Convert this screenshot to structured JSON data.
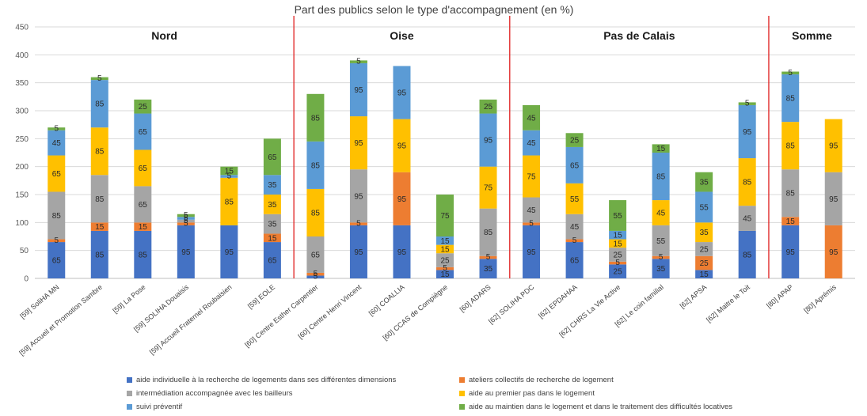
{
  "chart_data": {
    "type": "bar",
    "stacked": true,
    "title": "Part des publics selon le type d'accompagnement (en %)",
    "ylim": [
      0,
      450
    ],
    "yticks": [
      0,
      50,
      100,
      150,
      200,
      250,
      300,
      350,
      400,
      450
    ],
    "grid": true,
    "legend_position": "bottom",
    "regions": [
      {
        "name": "Nord",
        "from": 0,
        "to": 5
      },
      {
        "name": "Oise",
        "from": 6,
        "to": 10
      },
      {
        "name": "Pas de Calais",
        "from": 11,
        "to": 16
      },
      {
        "name": "Somme",
        "from": 17,
        "to": 18
      }
    ],
    "categories": [
      "[59] SoliHA MN",
      "[59] Accueil et Promotion Sambre",
      "[59] La Pose",
      "[59] SOLIHA Douaisis",
      "[59] Accueil Fraternel Roubaisien",
      "[59] EOLE",
      "[60] Centre Esther Carpentier",
      "[60] Centre Henri Vincent",
      "[60] COALLIA",
      "[60] CCAS de Compiègne",
      "[60] ADARS",
      "[62] SOLIHA PDC",
      "[62] EPDAHAA",
      "[62] CHRS La Vie Active",
      "[62] Le coin familial",
      "[62] APSA",
      "[62] Maitre le Toit",
      "[80] APAP",
      "[80] Aprémis"
    ],
    "series": [
      {
        "name": "aide individuelle à la recherche de logements dans ses différentes dimensions",
        "color": "#4472c4",
        "values": [
          65,
          85,
          85,
          95,
          95,
          65,
          5,
          95,
          95,
          15,
          35,
          95,
          65,
          25,
          35,
          15,
          85,
          95,
          0
        ]
      },
      {
        "name": "ateliers collectifs de recherche de logement",
        "color": "#ed7d31",
        "values": [
          5,
          15,
          15,
          5,
          0,
          15,
          5,
          5,
          95,
          5,
          5,
          5,
          5,
          5,
          5,
          25,
          0,
          15,
          95
        ]
      },
      {
        "name": "intermédiation accompagnée avec les bailleurs",
        "color": "#a5a5a5",
        "values": [
          85,
          85,
          65,
          5,
          0,
          35,
          65,
          95,
          0,
          25,
          85,
          45,
          45,
          25,
          55,
          25,
          45,
          85,
          95
        ]
      },
      {
        "name": "aide au premier pas dans le logement",
        "color": "#ffc000",
        "values": [
          65,
          85,
          65,
          0,
          85,
          35,
          85,
          95,
          95,
          15,
          75,
          75,
          55,
          15,
          45,
          35,
          85,
          85,
          95
        ]
      },
      {
        "name": "suivi préventif",
        "color": "#5b9bd5",
        "values": [
          45,
          85,
          65,
          5,
          5,
          35,
          85,
          95,
          95,
          15,
          95,
          45,
          65,
          15,
          85,
          55,
          95,
          85,
          0
        ]
      },
      {
        "name": "aide au maintien dans le logement et dans le traitement des difficultés locatives",
        "color": "#70ad47",
        "values": [
          5,
          5,
          25,
          5,
          15,
          65,
          85,
          5,
          0,
          75,
          25,
          45,
          25,
          55,
          15,
          35,
          5,
          5,
          0
        ]
      }
    ]
  }
}
